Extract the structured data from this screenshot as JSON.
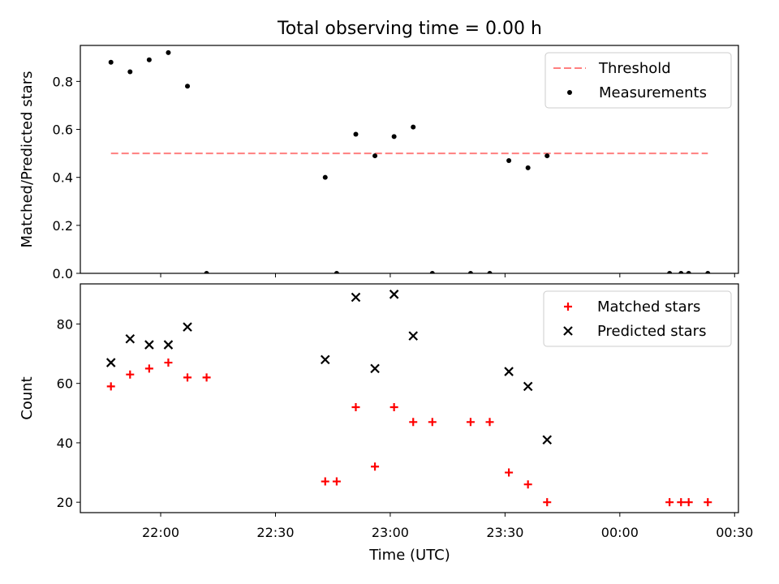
{
  "figure_title": "Total observing time = 0.00 h",
  "xlabel": "Time (UTC)",
  "x_ticks": [
    "22:00",
    "22:30",
    "23:00",
    "23:30",
    "00:00",
    "00:30"
  ],
  "colors": {
    "threshold": "#ff7f7f",
    "measurements": "#000000",
    "matched": "#ff0000",
    "predicted": "#000000"
  },
  "chart_data": [
    {
      "type": "scatter",
      "ylabel": "Matched/Predicted stars",
      "ylim": [
        0,
        0.95
      ],
      "xlim": [
        "21:39",
        "00:31"
      ],
      "y_ticks": [
        "0.0",
        "0.2",
        "0.4",
        "0.6",
        "0.8"
      ],
      "legend_placement": "top-right",
      "threshold": {
        "name": "Threshold",
        "value": 0.5,
        "x_range": [
          "21:47",
          "00:23"
        ]
      },
      "series": [
        {
          "name": "Measurements",
          "points": [
            {
              "x": "21:47",
              "y": 0.88
            },
            {
              "x": "21:52",
              "y": 0.84
            },
            {
              "x": "21:57",
              "y": 0.89
            },
            {
              "x": "22:02",
              "y": 0.92
            },
            {
              "x": "22:07",
              "y": 0.78
            },
            {
              "x": "22:12",
              "y": 0.0
            },
            {
              "x": "22:43",
              "y": 0.4
            },
            {
              "x": "22:46",
              "y": 0.0
            },
            {
              "x": "22:51",
              "y": 0.58
            },
            {
              "x": "22:56",
              "y": 0.49
            },
            {
              "x": "23:01",
              "y": 0.57
            },
            {
              "x": "23:06",
              "y": 0.61
            },
            {
              "x": "23:11",
              "y": 0.0
            },
            {
              "x": "23:21",
              "y": 0.0
            },
            {
              "x": "23:26",
              "y": 0.0
            },
            {
              "x": "23:31",
              "y": 0.47
            },
            {
              "x": "23:36",
              "y": 0.44
            },
            {
              "x": "23:41",
              "y": 0.49
            },
            {
              "x": "00:13",
              "y": 0.0
            },
            {
              "x": "00:16",
              "y": 0.0
            },
            {
              "x": "00:18",
              "y": 0.0
            },
            {
              "x": "00:23",
              "y": 0.0
            }
          ]
        }
      ]
    },
    {
      "type": "scatter",
      "ylabel": "Count",
      "ylim": [
        16.5,
        93.5
      ],
      "xlim": [
        "21:39",
        "00:31"
      ],
      "y_ticks": [
        "20",
        "40",
        "60",
        "80"
      ],
      "legend_placement": "top-right",
      "series": [
        {
          "name": "Matched stars",
          "points": [
            {
              "x": "21:47",
              "y": 59
            },
            {
              "x": "21:52",
              "y": 63
            },
            {
              "x": "21:57",
              "y": 65
            },
            {
              "x": "22:02",
              "y": 67
            },
            {
              "x": "22:07",
              "y": 62
            },
            {
              "x": "22:12",
              "y": 62
            },
            {
              "x": "22:43",
              "y": 27
            },
            {
              "x": "22:46",
              "y": 27
            },
            {
              "x": "22:51",
              "y": 52
            },
            {
              "x": "22:56",
              "y": 32
            },
            {
              "x": "23:01",
              "y": 52
            },
            {
              "x": "23:06",
              "y": 47
            },
            {
              "x": "23:11",
              "y": 47
            },
            {
              "x": "23:21",
              "y": 47
            },
            {
              "x": "23:26",
              "y": 47
            },
            {
              "x": "23:31",
              "y": 30
            },
            {
              "x": "23:36",
              "y": 26
            },
            {
              "x": "23:41",
              "y": 20
            },
            {
              "x": "00:13",
              "y": 20
            },
            {
              "x": "00:16",
              "y": 20
            },
            {
              "x": "00:18",
              "y": 20
            },
            {
              "x": "00:23",
              "y": 20
            }
          ]
        },
        {
          "name": "Predicted stars",
          "points": [
            {
              "x": "21:47",
              "y": 67
            },
            {
              "x": "21:52",
              "y": 75
            },
            {
              "x": "21:57",
              "y": 73
            },
            {
              "x": "22:02",
              "y": 73
            },
            {
              "x": "22:07",
              "y": 79
            },
            {
              "x": "22:43",
              "y": 68
            },
            {
              "x": "22:51",
              "y": 89
            },
            {
              "x": "22:56",
              "y": 65
            },
            {
              "x": "23:01",
              "y": 90
            },
            {
              "x": "23:06",
              "y": 76
            },
            {
              "x": "23:31",
              "y": 64
            },
            {
              "x": "23:36",
              "y": 59
            },
            {
              "x": "23:41",
              "y": 41
            }
          ]
        }
      ]
    }
  ]
}
